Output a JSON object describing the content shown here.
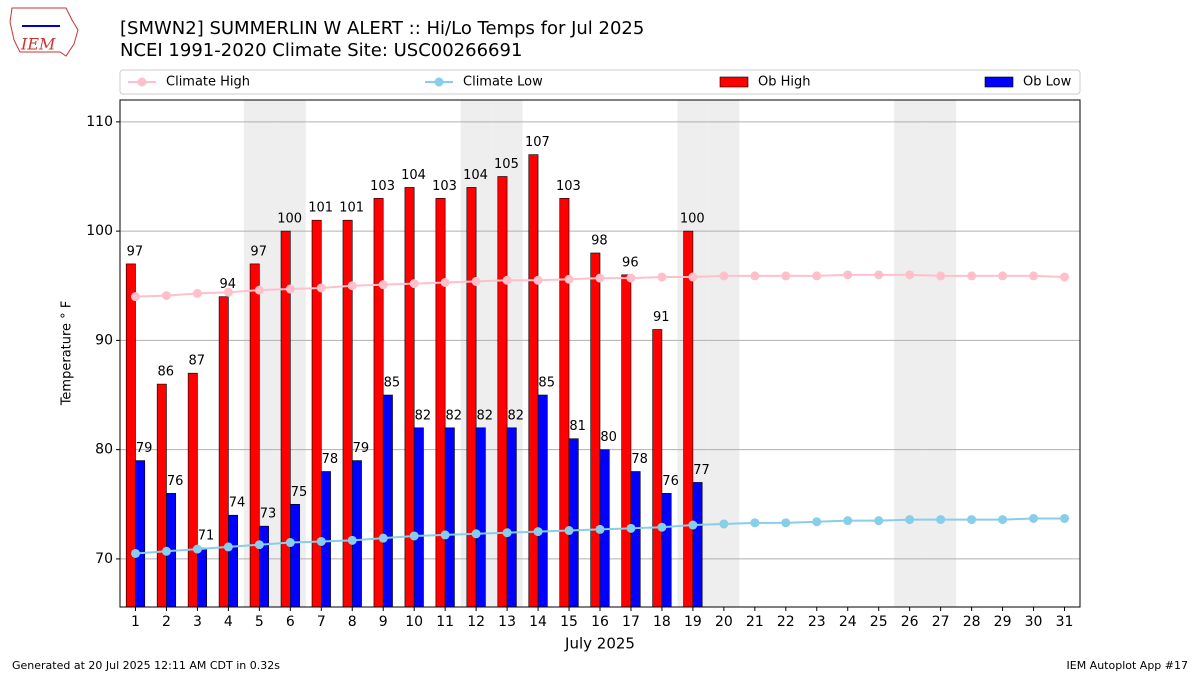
{
  "logo_text": "IEM",
  "footer_left": "Generated at 20 Jul 2025 12:11 AM CDT in 0.32s",
  "footer_right": "IEM Autoplot App #17",
  "chart_data": {
    "type": "bar",
    "title": "[SMWN2] SUMMERLIN W ALERT :: Hi/Lo Temps for Jul 2025",
    "subtitle": "NCEI 1991-2020 Climate Site: USC00266691",
    "x_label": "July 2025",
    "y_label": "Temperature ° F",
    "x": [
      1,
      2,
      3,
      4,
      5,
      6,
      7,
      8,
      9,
      10,
      11,
      12,
      13,
      14,
      15,
      16,
      17,
      18,
      19,
      20,
      21,
      22,
      23,
      24,
      25,
      26,
      27,
      28,
      29,
      30,
      31
    ],
    "xlim": [
      0.5,
      31.5
    ],
    "ylim": [
      65.6,
      112
    ],
    "yticks": [
      70,
      80,
      90,
      100,
      110
    ],
    "grid": true,
    "shaded_days": [
      5,
      6,
      12,
      13,
      19,
      20,
      26,
      27
    ],
    "shade_color": "#eeeeee",
    "legend": "top",
    "series": [
      {
        "name": "Climate High",
        "mark": "line",
        "color": "#ffc0cb",
        "values": [
          94.0,
          94.1,
          94.3,
          94.4,
          94.6,
          94.7,
          94.8,
          95.0,
          95.1,
          95.2,
          95.3,
          95.4,
          95.5,
          95.5,
          95.6,
          95.7,
          95.7,
          95.8,
          95.8,
          95.9,
          95.9,
          95.9,
          95.9,
          96.0,
          96.0,
          96.0,
          95.9,
          95.9,
          95.9,
          95.9,
          95.8
        ]
      },
      {
        "name": "Climate Low",
        "mark": "line",
        "color": "#87ceeb",
        "values": [
          70.5,
          70.7,
          70.9,
          71.1,
          71.3,
          71.5,
          71.6,
          71.7,
          71.9,
          72.1,
          72.2,
          72.3,
          72.4,
          72.5,
          72.6,
          72.7,
          72.8,
          72.9,
          73.1,
          73.2,
          73.3,
          73.3,
          73.4,
          73.5,
          73.5,
          73.6,
          73.6,
          73.6,
          73.6,
          73.7,
          73.7
        ]
      },
      {
        "name": "Ob High",
        "mark": "bar",
        "color": "#ff0000",
        "values": [
          97,
          86,
          87,
          94,
          97,
          100,
          101,
          101,
          103,
          104,
          103,
          104,
          105,
          107,
          103,
          98,
          96,
          91,
          100,
          null,
          null,
          null,
          null,
          null,
          null,
          null,
          null,
          null,
          null,
          null,
          null
        ]
      },
      {
        "name": "Ob Low",
        "mark": "bar",
        "color": "#0000ff",
        "values": [
          79,
          76,
          71,
          74,
          73,
          75,
          78,
          79,
          85,
          82,
          82,
          82,
          82,
          85,
          81,
          80,
          78,
          76,
          77,
          null,
          null,
          null,
          null,
          null,
          null,
          null,
          null,
          null,
          null,
          null,
          null
        ]
      }
    ]
  }
}
